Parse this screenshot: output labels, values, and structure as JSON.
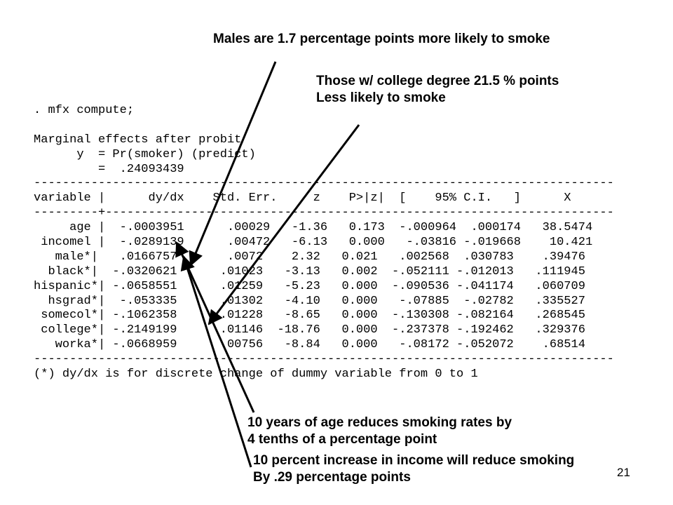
{
  "annotations": {
    "males": "Males are 1.7 percentage points more likely to smoke",
    "college_line1": "Those w/ college degree 21.5 % points",
    "college_line2": "Less likely to smoke",
    "age_line1": "10 years of age reduces smoking rates by",
    "age_line2": "4 tenths of a percentage point",
    "income_line1": "10 percent increase in income will reduce smoking",
    "income_line2": "By .29 percentage points"
  },
  "stata": {
    "command": ". mfx compute;",
    "header1": "Marginal effects after probit",
    "header2": "      y  = Pr(smoker) (predict)",
    "header3": "         =  .24093439",
    "rule": "---------------------------------------------------------------------------------",
    "column_header": "variable |      dy/dx    Std. Err.     z    P>|z|  [    95% C.I.   ]      X",
    "separator": "---------+-----------------------------------------------------------------------",
    "rows": [
      "     age |  -.0003951      .00029   -1.36   0.173  -.000964  .000174   38.5474",
      " incomel |  -.0289139      .00472   -6.13   0.000   -.03816 -.019668    10.421",
      "   male*|   .0166757       .0072    2.32   0.021   .002568  .030783    .39476",
      "  black*|  -.0320621      .01023   -3.13   0.002  -.052111 -.012013   .111945",
      "hispanic*| -.0658551      .01259   -5.23   0.000  -.090536 -.041174   .060709",
      "  hsgrad*|  -.053335      .01302   -4.10   0.000   -.07885  -.02782   .335527",
      " somecol*| -.1062358      .01228   -8.65   0.000  -.130308 -.082164   .268545",
      " college*| -.2149199      .01146  -18.76   0.000  -.237378 -.192462   .329376",
      "   worka*| -.0668959      .00756   -8.84   0.000   -.08172 -.052072    .68514"
    ],
    "footnote": "(*) dy/dx is for discrete change of dummy variable from 0 to 1"
  },
  "slide_number": "21",
  "colors": {
    "text": "#000000",
    "background": "#ffffff"
  }
}
